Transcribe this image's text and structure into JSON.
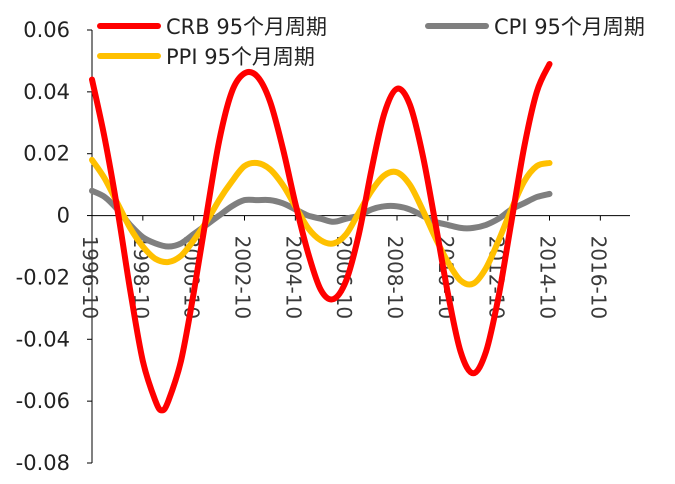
{
  "chart_data": {
    "type": "line",
    "title": "",
    "xlabel": "",
    "ylabel": "",
    "ylim": [
      -0.08,
      0.06
    ],
    "yticks": [
      0.06,
      0.04,
      0.02,
      0,
      -0.02,
      -0.04,
      -0.06,
      -0.08
    ],
    "ytick_labels": [
      "0.06",
      "0.04",
      "0.02",
      "0",
      "-0.02",
      "-0.04",
      "-0.06",
      "-0.08"
    ],
    "x_range": [
      "1996-10",
      "2017-12"
    ],
    "x_tick_labels": [
      "1996-10",
      "1998-10",
      "2000-10",
      "2002-10",
      "2004-10",
      "2006-10",
      "2008-10",
      "2010-10",
      "2012-10",
      "2014-10",
      "2016-10"
    ],
    "grid": false,
    "legend_position": "top",
    "series": [
      {
        "name": "CRB 95个月周期",
        "color": "#FF0000",
        "points": [
          [
            "1996-10",
            0.044
          ],
          [
            "1997-04",
            0.025
          ],
          [
            "1997-10",
            0.002
          ],
          [
            "1998-04",
            -0.024
          ],
          [
            "1998-10",
            -0.047
          ],
          [
            "1999-04",
            -0.06
          ],
          [
            "1999-07",
            -0.063
          ],
          [
            "1999-10",
            -0.06
          ],
          [
            "2000-04",
            -0.047
          ],
          [
            "2000-10",
            -0.025
          ],
          [
            "2001-04",
            0.0
          ],
          [
            "2001-10",
            0.024
          ],
          [
            "2002-04",
            0.04
          ],
          [
            "2002-10",
            0.046
          ],
          [
            "2003-04",
            0.045
          ],
          [
            "2003-10",
            0.037
          ],
          [
            "2004-04",
            0.022
          ],
          [
            "2004-10",
            0.004
          ],
          [
            "2005-04",
            -0.012
          ],
          [
            "2005-10",
            -0.024
          ],
          [
            "2006-04",
            -0.027
          ],
          [
            "2006-10",
            -0.021
          ],
          [
            "2007-04",
            -0.006
          ],
          [
            "2007-10",
            0.015
          ],
          [
            "2008-04",
            0.033
          ],
          [
            "2008-10",
            0.041
          ],
          [
            "2009-04",
            0.036
          ],
          [
            "2009-10",
            0.02
          ],
          [
            "2010-04",
            -0.002
          ],
          [
            "2010-10",
            -0.025
          ],
          [
            "2011-04",
            -0.044
          ],
          [
            "2011-10",
            -0.051
          ],
          [
            "2012-04",
            -0.044
          ],
          [
            "2012-10",
            -0.026
          ],
          [
            "2013-04",
            -0.002
          ],
          [
            "2013-10",
            0.022
          ],
          [
            "2014-04",
            0.04
          ],
          [
            "2014-10",
            0.049
          ]
        ]
      },
      {
        "name": "CPI 95个月周期",
        "color": "#7F7F7F",
        "points": [
          [
            "1996-10",
            0.008
          ],
          [
            "1997-04",
            0.006
          ],
          [
            "1997-10",
            0.002
          ],
          [
            "1998-04",
            -0.003
          ],
          [
            "1998-10",
            -0.007
          ],
          [
            "1999-04",
            -0.009
          ],
          [
            "1999-10",
            -0.01
          ],
          [
            "2000-04",
            -0.009
          ],
          [
            "2000-10",
            -0.006
          ],
          [
            "2001-04",
            -0.003
          ],
          [
            "2001-10",
            0.0
          ],
          [
            "2002-04",
            0.003
          ],
          [
            "2002-10",
            0.005
          ],
          [
            "2003-04",
            0.005
          ],
          [
            "2003-10",
            0.005
          ],
          [
            "2004-04",
            0.004
          ],
          [
            "2004-10",
            0.002
          ],
          [
            "2005-04",
            0.0
          ],
          [
            "2005-10",
            -0.001
          ],
          [
            "2006-04",
            -0.002
          ],
          [
            "2006-10",
            -0.001
          ],
          [
            "2007-04",
            0.0
          ],
          [
            "2007-10",
            0.002
          ],
          [
            "2008-04",
            0.003
          ],
          [
            "2008-10",
            0.003
          ],
          [
            "2009-04",
            0.002
          ],
          [
            "2009-10",
            0.0
          ],
          [
            "2010-04",
            -0.002
          ],
          [
            "2010-10",
            -0.003
          ],
          [
            "2011-04",
            -0.004
          ],
          [
            "2011-10",
            -0.004
          ],
          [
            "2012-04",
            -0.003
          ],
          [
            "2012-10",
            -0.001
          ],
          [
            "2013-04",
            0.002
          ],
          [
            "2013-10",
            0.004
          ],
          [
            "2014-04",
            0.006
          ],
          [
            "2014-10",
            0.007
          ]
        ]
      },
      {
        "name": "PPI 95个月周期",
        "color": "#FFC000",
        "points": [
          [
            "1996-10",
            0.018
          ],
          [
            "1997-04",
            0.012
          ],
          [
            "1997-10",
            0.004
          ],
          [
            "1998-04",
            -0.004
          ],
          [
            "1998-10",
            -0.01
          ],
          [
            "1999-04",
            -0.014
          ],
          [
            "1999-10",
            -0.015
          ],
          [
            "2000-04",
            -0.013
          ],
          [
            "2000-10",
            -0.008
          ],
          [
            "2001-04",
            -0.002
          ],
          [
            "2001-10",
            0.005
          ],
          [
            "2002-04",
            0.011
          ],
          [
            "2002-10",
            0.016
          ],
          [
            "2003-04",
            0.017
          ],
          [
            "2003-10",
            0.015
          ],
          [
            "2004-04",
            0.01
          ],
          [
            "2004-10",
            0.003
          ],
          [
            "2005-04",
            -0.004
          ],
          [
            "2005-10",
            -0.008
          ],
          [
            "2006-04",
            -0.009
          ],
          [
            "2006-10",
            -0.006
          ],
          [
            "2007-04",
            0.001
          ],
          [
            "2007-10",
            0.008
          ],
          [
            "2008-04",
            0.013
          ],
          [
            "2008-10",
            0.014
          ],
          [
            "2009-04",
            0.01
          ],
          [
            "2009-10",
            0.002
          ],
          [
            "2010-04",
            -0.007
          ],
          [
            "2010-10",
            -0.015
          ],
          [
            "2011-04",
            -0.021
          ],
          [
            "2011-10",
            -0.022
          ],
          [
            "2012-04",
            -0.017
          ],
          [
            "2012-10",
            -0.008
          ],
          [
            "2013-04",
            0.002
          ],
          [
            "2013-10",
            0.011
          ],
          [
            "2014-04",
            0.016
          ],
          [
            "2014-10",
            0.017
          ]
        ]
      }
    ]
  }
}
